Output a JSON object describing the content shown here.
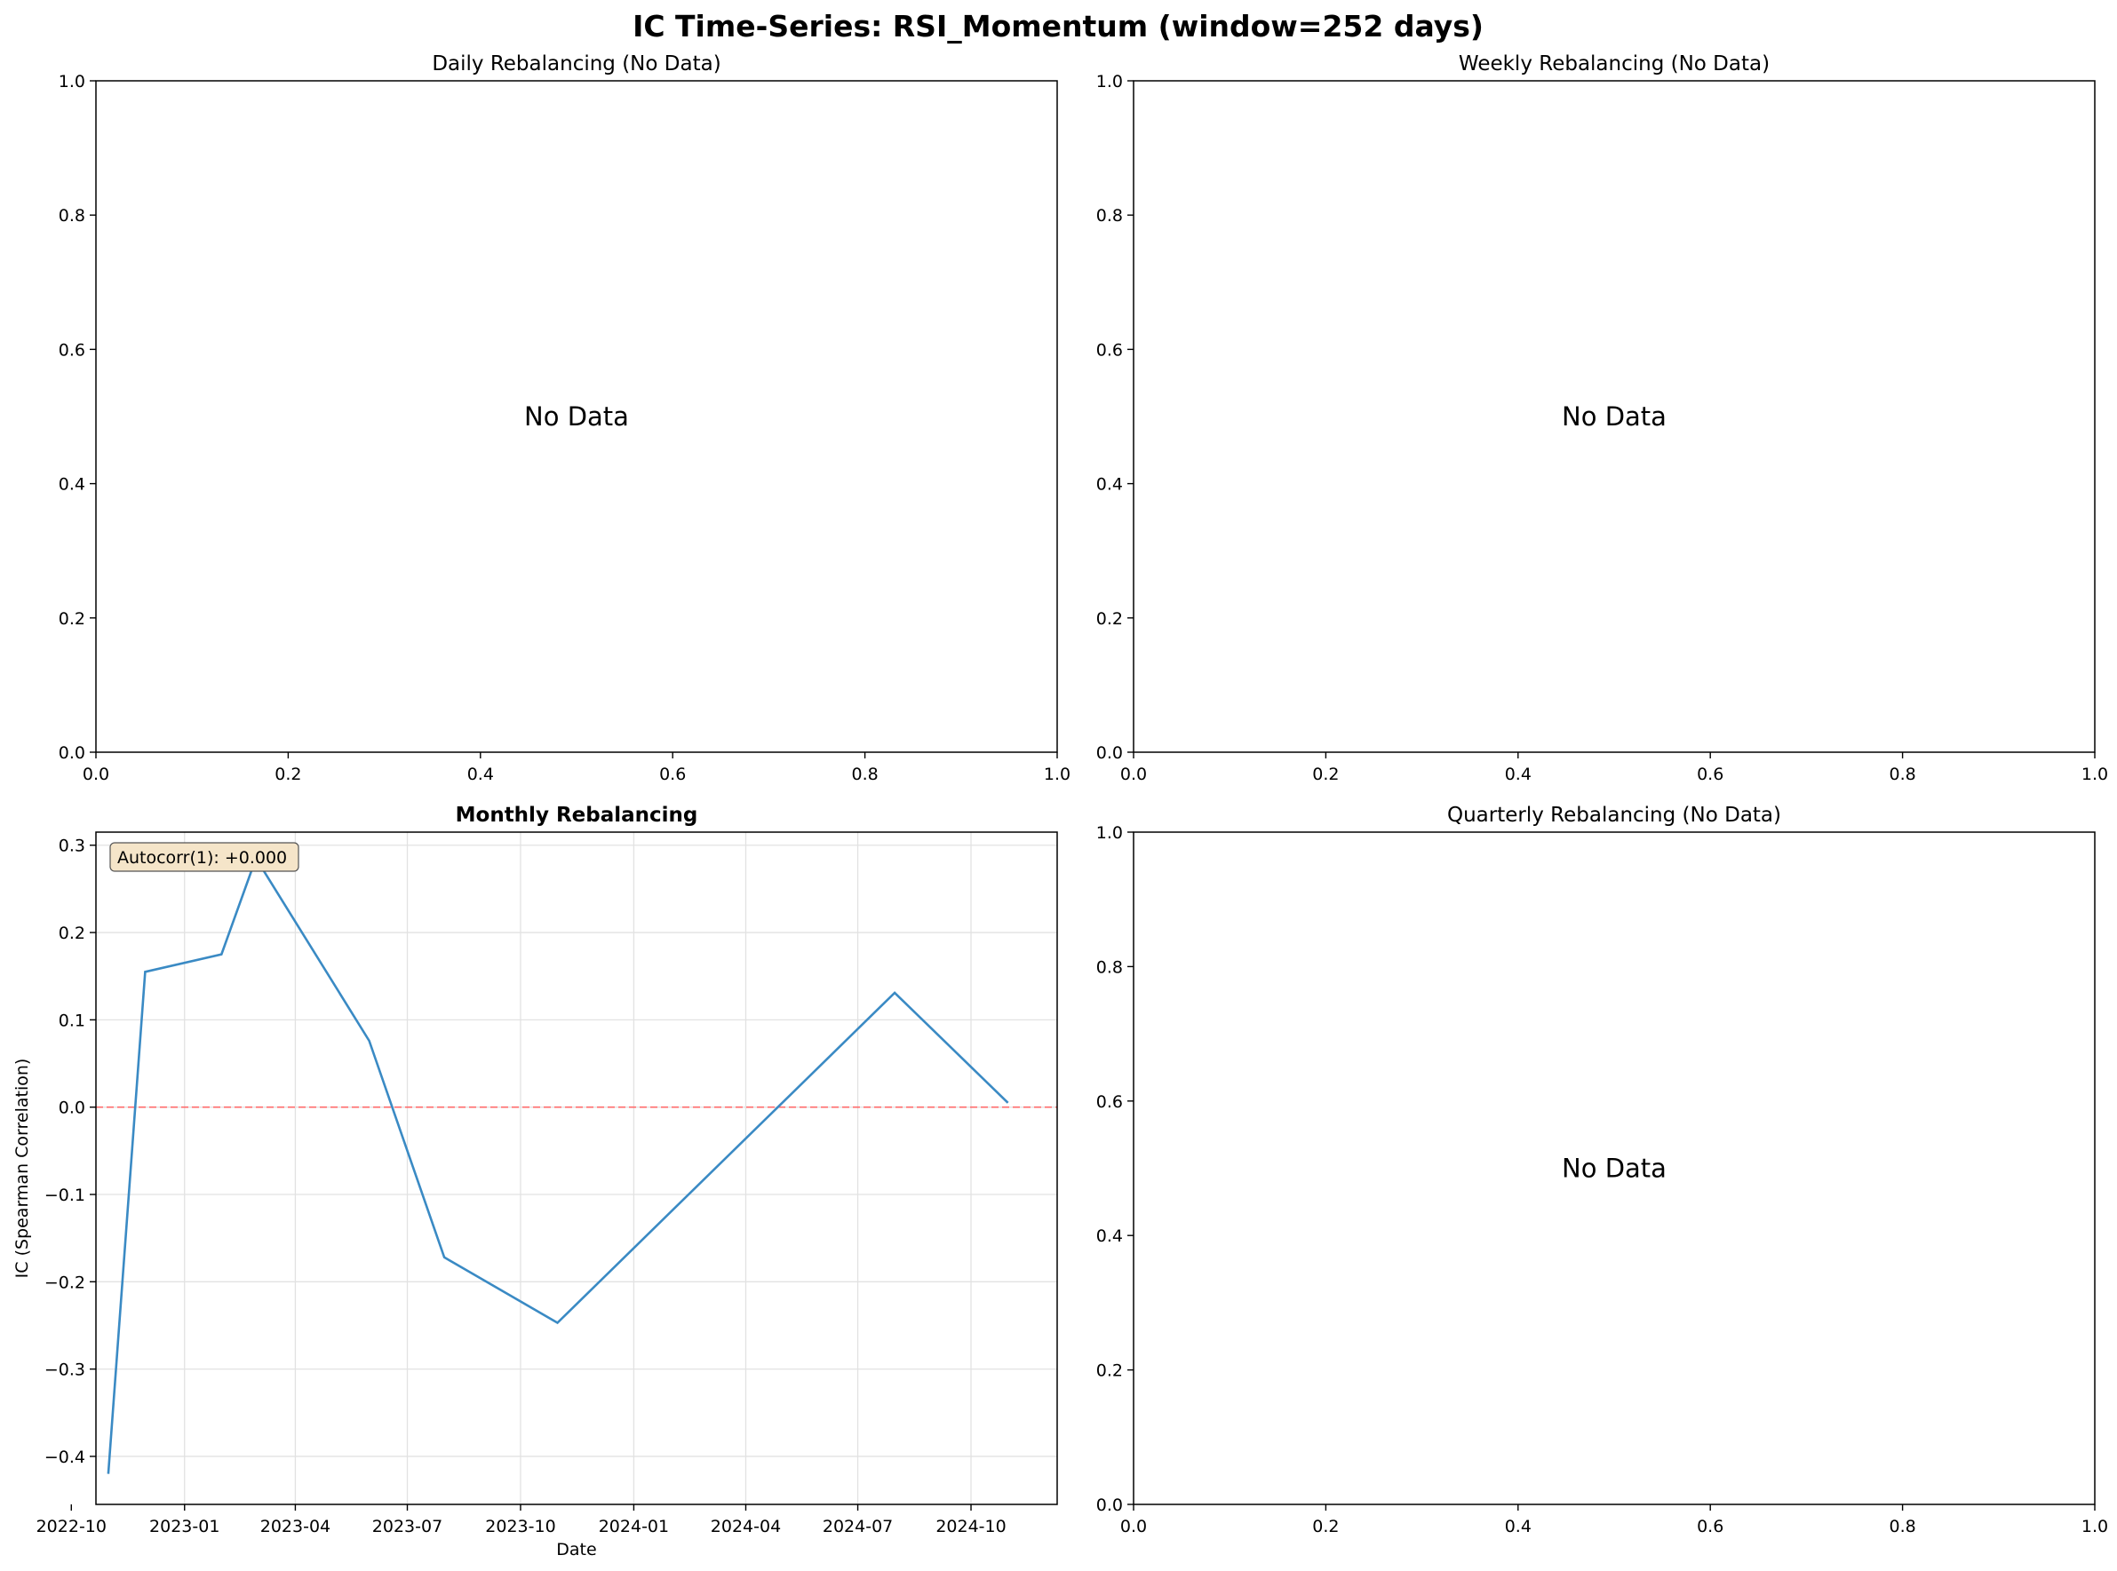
{
  "figure": {
    "title": "IC Time-Series: RSI_Momentum (window=252 days)"
  },
  "chart_data": [
    {
      "type": "line",
      "title": "Daily Rebalancing (No Data)",
      "has_data": false,
      "message": "No Data",
      "xlim": [
        0,
        1
      ],
      "ylim": [
        0,
        1
      ],
      "xticks": [
        "0.0",
        "0.2",
        "0.4",
        "0.6",
        "0.8",
        "1.0"
      ],
      "yticks": [
        "0.0",
        "0.2",
        "0.4",
        "0.6",
        "0.8",
        "1.0"
      ]
    },
    {
      "type": "line",
      "title": "Weekly Rebalancing (No Data)",
      "has_data": false,
      "message": "No Data",
      "xlim": [
        0,
        1
      ],
      "ylim": [
        0,
        1
      ],
      "xticks": [
        "0.0",
        "0.2",
        "0.4",
        "0.6",
        "0.8",
        "1.0"
      ],
      "yticks": [
        "0.0",
        "0.2",
        "0.4",
        "0.6",
        "0.8",
        "1.0"
      ]
    },
    {
      "type": "line",
      "title": "Monthly Rebalancing",
      "has_data": true,
      "xlabel": "Date",
      "ylabel": "IC (Spearman Correlation)",
      "annotation": "Autocorr(1): +0.000",
      "grid": true,
      "reference_line": {
        "y": 0,
        "color": "#ff6b6b",
        "style": "dashed"
      },
      "line_color": "#3a8ac4",
      "xlim": [
        "2022-10-21",
        "2024-12-10"
      ],
      "ylim": [
        -0.455,
        0.315
      ],
      "xticks": [
        "2022-10",
        "2023-01",
        "2023-04",
        "2023-07",
        "2023-10",
        "2024-01",
        "2024-04",
        "2024-07",
        "2024-10"
      ],
      "xtick_dates": [
        "2022-10-01",
        "2023-01-01",
        "2023-04-01",
        "2023-07-01",
        "2023-10-01",
        "2024-01-01",
        "2024-04-01",
        "2024-07-01",
        "2024-10-01"
      ],
      "yticks": [
        -0.4,
        -0.3,
        -0.2,
        -0.1,
        0.0,
        0.1,
        0.2,
        0.3
      ],
      "ytick_labels": [
        "−0.4",
        "−0.3",
        "−0.2",
        "−0.1",
        "0.0",
        "0.1",
        "0.2",
        "0.3"
      ],
      "series": [
        {
          "x": [
            "2022-10-31",
            "2022-11-30",
            "2023-01-31",
            "2023-02-28",
            "2023-05-31",
            "2023-07-31",
            "2023-10-31",
            "2024-07-31",
            "2024-10-31"
          ],
          "y": [
            -0.42,
            0.155,
            0.175,
            0.285,
            0.076,
            -0.172,
            -0.247,
            0.131,
            0.005
          ]
        }
      ]
    },
    {
      "type": "line",
      "title": "Quarterly Rebalancing (No Data)",
      "has_data": false,
      "message": "No Data",
      "xlim": [
        0,
        1
      ],
      "ylim": [
        0,
        1
      ],
      "xticks": [
        "0.0",
        "0.2",
        "0.4",
        "0.6",
        "0.8",
        "1.0"
      ],
      "yticks": [
        "0.0",
        "0.2",
        "0.4",
        "0.6",
        "0.8",
        "1.0"
      ]
    }
  ]
}
